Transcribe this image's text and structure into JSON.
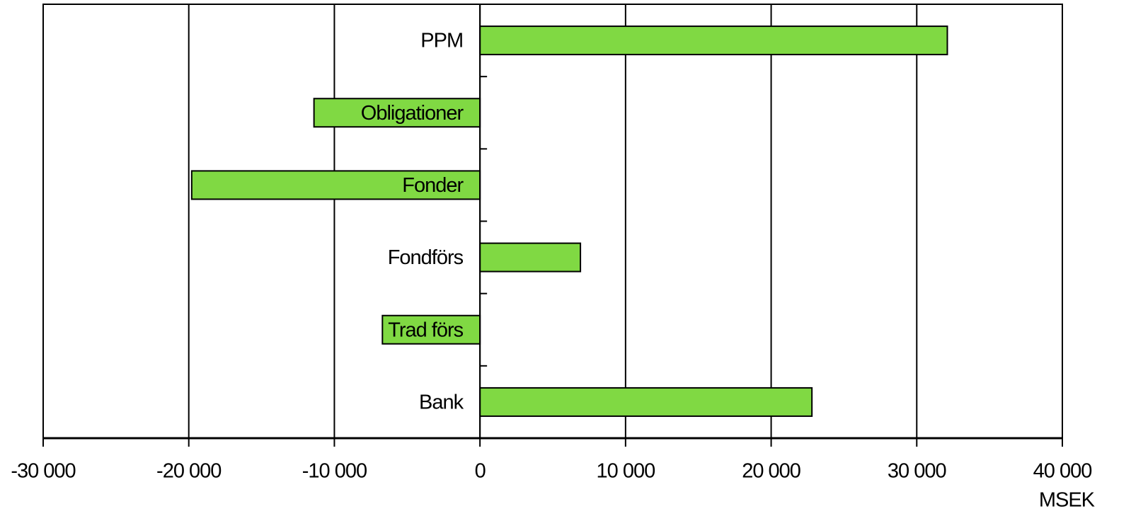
{
  "chart_data": {
    "type": "barh",
    "categories": [
      "PPM",
      "Obligationer",
      "Fonder",
      "Fondförs",
      "Trad förs",
      "Bank"
    ],
    "values": [
      32100,
      -11400,
      -19800,
      6900,
      -6700,
      22800
    ],
    "color": "#80d943",
    "xlim": [
      -30000,
      40000
    ],
    "xticks": [
      {
        "value": -30000,
        "label": "-30 000"
      },
      {
        "value": -20000,
        "label": "-20 000"
      },
      {
        "value": -10000,
        "label": "-10 000"
      },
      0,
      {
        "value": 10000,
        "label": "10 000"
      },
      {
        "value": 20000,
        "label": "20 000"
      },
      {
        "value": 30000,
        "label": "30 000"
      },
      {
        "value": 40000,
        "label": "40 000"
      }
    ],
    "x_label": "MSEK",
    "grid": true
  }
}
